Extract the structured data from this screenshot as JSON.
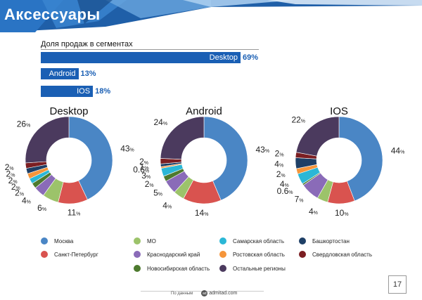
{
  "header": {
    "title": "Аксессуары"
  },
  "colors": {
    "Москва": "#4a86c5",
    "Санкт-Петербург": "#d9534f",
    "МО": "#9cc36a",
    "Краснодарский край": "#8a6bb8",
    "Новосибирская область": "#4d7a2e",
    "Самарская область": "#2bb7d6",
    "Ростовская область": "#f5953a",
    "Башкортостан": "#1e3f66",
    "Свердловская область": "#7b1e22",
    "Остальные регионы": "#4b3a5e"
  },
  "chart_data": [
    {
      "type": "bar",
      "title": "Доля продаж в сегментах",
      "orientation": "horizontal",
      "categories": [
        "Desktop",
        "Android",
        "IOS"
      ],
      "values": [
        69,
        13,
        18
      ],
      "value_labels": [
        "69%",
        "13%",
        "18%"
      ],
      "xlim": [
        0,
        100
      ]
    },
    {
      "type": "pie",
      "title": "Desktop",
      "labels": [
        "Москва",
        "Санкт-Петербург",
        "МО",
        "Краснодарский край",
        "Новосибирская область",
        "Самарская область",
        "Ростовская область",
        "Башкортостан",
        "Свердловская область",
        "Остальные регионы"
      ],
      "values": [
        43,
        11,
        6,
        4,
        2,
        2,
        2,
        2,
        2,
        26
      ],
      "label_order": [
        "43",
        "11",
        "6",
        "4",
        "2",
        "2",
        "2",
        "2",
        "2",
        "26"
      ]
    },
    {
      "type": "pie",
      "title": "Android",
      "labels": [
        "Москва",
        "Санкт-Петербург",
        "МО",
        "Краснодарский край",
        "Новосибирская область",
        "Самарская область",
        "Ростовская область",
        "Башкортостан",
        "Свердловская область",
        "Остальные регионы"
      ],
      "values": [
        43,
        14,
        4,
        5,
        2,
        3,
        0.6,
        1,
        2,
        24
      ]
    },
    {
      "type": "pie",
      "title": "IOS",
      "labels": [
        "Москва",
        "Санкт-Петербург",
        "МО",
        "Краснодарский край",
        "Новосибирская область",
        "Самарская область",
        "Ростовская область",
        "Башкортостан",
        "Свердловская область",
        "Остальные регионы"
      ],
      "values": [
        44,
        10,
        4,
        7,
        0.6,
        4,
        2,
        4,
        2,
        22
      ]
    }
  ],
  "legend": [
    "Москва",
    "МО",
    "Самарская область",
    "Башкортостан",
    "Санкт-Петербург",
    "Краснодарский край",
    "Ростовская область",
    "Свердловская область",
    "Новосибирская область",
    "Остальные регионы"
  ],
  "footer": {
    "source_label": "По данным",
    "logo_text": "admitad.com",
    "logo_mark": "ad"
  },
  "page_number": "17"
}
